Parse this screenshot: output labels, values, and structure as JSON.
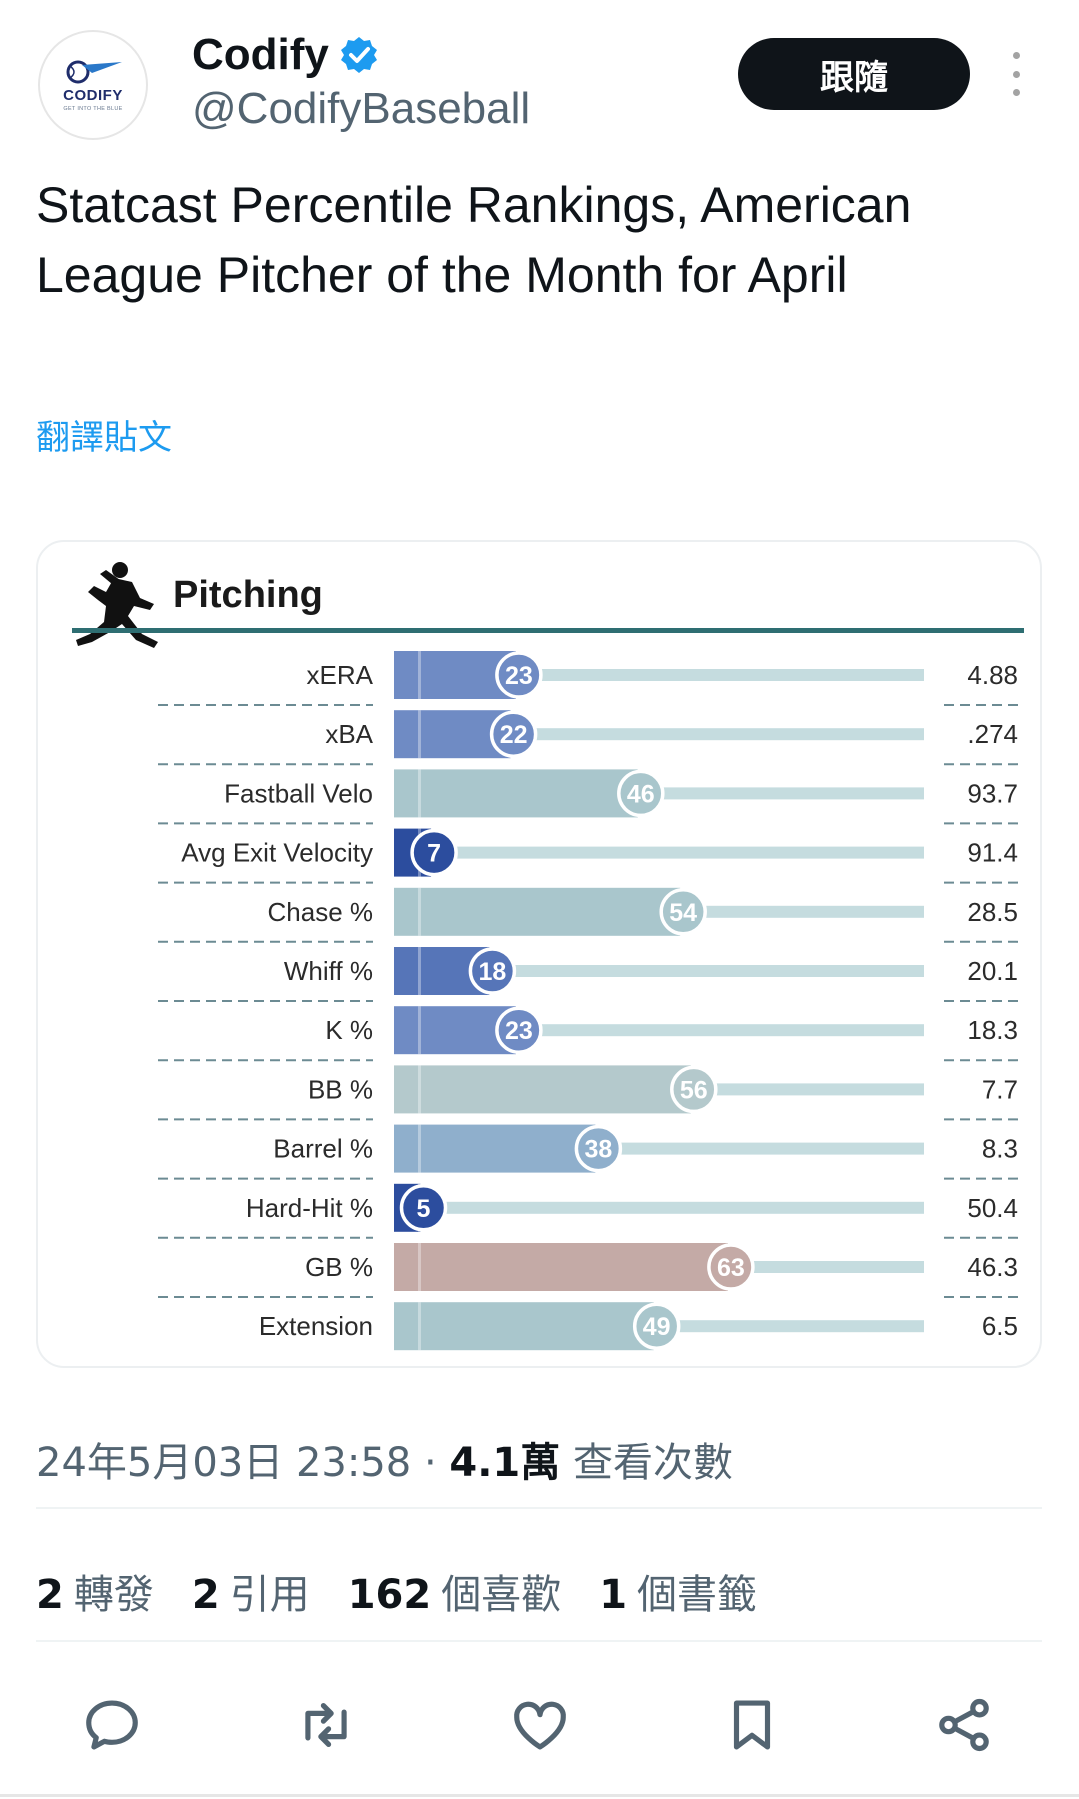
{
  "author": {
    "display_name": "Codify",
    "handle": "@CodifyBaseball",
    "verified": true,
    "avatar": {
      "logo_text": "CODIFY",
      "logo_sub": "GET INTO THE BLUE",
      "icon": "codify-logo"
    }
  },
  "follow_label": "跟隨",
  "tweet_text": "Statcast Percentile Rankings, American League Pitcher of the Month for April",
  "translate_label": "翻譯貼文",
  "chart_data": {
    "type": "bar",
    "title": "Pitching",
    "categories": [
      "xERA",
      "xBA",
      "Fastball Velo",
      "Avg Exit Velocity",
      "Chase %",
      "Whiff %",
      "K %",
      "BB %",
      "Barrel %",
      "Hard-Hit %",
      "GB %",
      "Extension"
    ],
    "values": [
      23,
      22,
      46,
      7,
      54,
      18,
      23,
      56,
      38,
      5,
      63,
      49
    ],
    "stat_values": [
      "4.88",
      ".274",
      "93.7",
      "91.4",
      "28.5",
      "20.1",
      "18.3",
      "7.7",
      "8.3",
      "50.4",
      "46.3",
      "6.5"
    ],
    "colors": [
      "#6f8bc4",
      "#6f8bc4",
      "#a9c6cc",
      "#2c4d9e",
      "#a9c6cc",
      "#5675b8",
      "#6f8bc4",
      "#b4c9cc",
      "#8fafcc",
      "#2c4d9e",
      "#c4aaa6",
      "#a9c6cc"
    ],
    "xlim": [
      0,
      100
    ],
    "icon": "pitcher-silhouette-icon"
  },
  "timestamp": {
    "date_time": "24年5月03日 23:58",
    "separator": " · ",
    "views_count": "4.1萬",
    "views_label": "查看次數"
  },
  "stats": [
    {
      "count": "2",
      "label": "轉發"
    },
    {
      "count": "2",
      "label": "引用"
    },
    {
      "count": "162",
      "label": "個喜歡"
    },
    {
      "count": "1",
      "label": "個書籤"
    }
  ],
  "actions": [
    "reply-icon",
    "retweet-icon",
    "like-icon",
    "bookmark-icon",
    "share-icon"
  ]
}
